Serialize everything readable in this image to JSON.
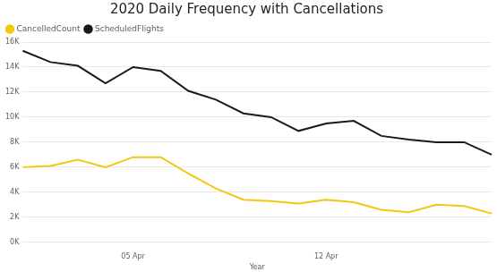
{
  "chart_data": {
    "type": "line",
    "title": "2020 Daily Frequency with Cancellations",
    "x_label": "Year",
    "categories": [
      null,
      null,
      null,
      null,
      "05 Apr",
      null,
      null,
      null,
      null,
      null,
      null,
      "12 Apr",
      null,
      null,
      null,
      null,
      null,
      null
    ],
    "series": [
      {
        "name": "CancelledCount",
        "color": "#f2c80f",
        "values": [
          6000,
          6100,
          6600,
          6000,
          6800,
          6800,
          5500,
          4300,
          3400,
          3300,
          3100,
          3400,
          3200,
          2600,
          2400,
          3000,
          2900,
          2300
        ]
      },
      {
        "name": "ScheduledFlights",
        "color": "#1a1a1a",
        "values": [
          15300,
          14400,
          14100,
          12700,
          14000,
          13700,
          12100,
          11400,
          10300,
          10000,
          8900,
          9500,
          9700,
          8500,
          8200,
          8000,
          8000,
          7000
        ]
      }
    ],
    "ylim": [
      0,
      16000
    ],
    "yticks": [
      {
        "value": 0,
        "label": "0K"
      },
      {
        "value": 2000,
        "label": "2K"
      },
      {
        "value": 4000,
        "label": "4K"
      },
      {
        "value": 6000,
        "label": "6K"
      },
      {
        "value": 8000,
        "label": "8K"
      },
      {
        "value": 10000,
        "label": "10K"
      },
      {
        "value": 12000,
        "label": "12K"
      },
      {
        "value": 14000,
        "label": "14K"
      },
      {
        "value": 16000,
        "label": "16K"
      }
    ],
    "grid": true,
    "legend": "top-left"
  }
}
